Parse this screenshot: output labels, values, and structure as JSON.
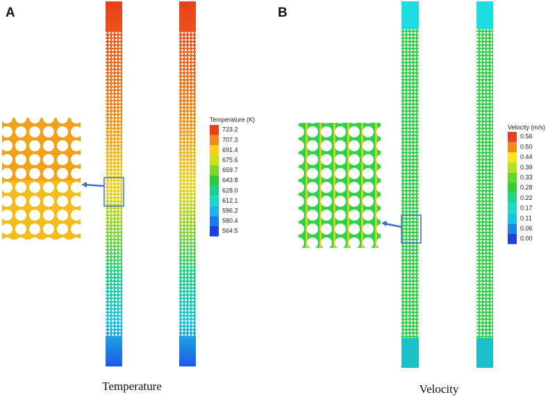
{
  "panel_a": {
    "label": "A",
    "caption": "Temperature",
    "legend": {
      "title": "Temperature (K)",
      "entries": [
        {
          "label": "723.2",
          "color": "#e8401c"
        },
        {
          "label": "707.3",
          "color": "#f08a1c"
        },
        {
          "label": "691.4",
          "color": "#f6cf1c"
        },
        {
          "label": "675.6",
          "color": "#c9e21c"
        },
        {
          "label": "659.7",
          "color": "#7fd32c"
        },
        {
          "label": "643.8",
          "color": "#2fc93c"
        },
        {
          "label": "628.0",
          "color": "#1ccf8a"
        },
        {
          "label": "612.1",
          "color": "#1cd7cc"
        },
        {
          "label": "596.2",
          "color": "#1cb3e8"
        },
        {
          "label": "580.4",
          "color": "#1c7ae8"
        },
        {
          "label": "564.5",
          "color": "#1c3fe0"
        }
      ]
    }
  },
  "panel_b": {
    "label": "B",
    "caption": "Velocity",
    "legend": {
      "title": "Velocity (m/s)",
      "entries": [
        {
          "label": "0.56",
          "color": "#e8401c"
        },
        {
          "label": "0.50",
          "color": "#f08a1c"
        },
        {
          "label": "0.44",
          "color": "#f6e41c"
        },
        {
          "label": "0.39",
          "color": "#b5e21c"
        },
        {
          "label": "0.33",
          "color": "#5fd82c"
        },
        {
          "label": "0.28",
          "color": "#2fcf3c"
        },
        {
          "label": "0.22",
          "color": "#1cd48a"
        },
        {
          "label": "0.17",
          "color": "#1cdcc4"
        },
        {
          "label": "0.11",
          "color": "#1cbfe8"
        },
        {
          "label": "0.06",
          "color": "#1c86e8"
        },
        {
          "label": "0.00",
          "color": "#1c3fe0"
        }
      ]
    }
  }
}
